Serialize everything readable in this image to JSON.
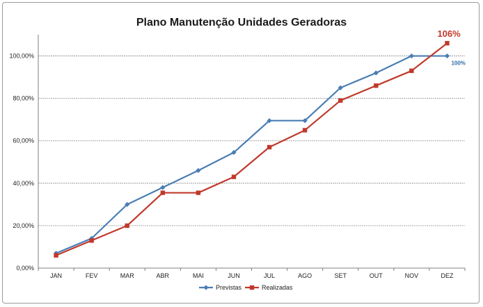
{
  "chart_data": {
    "type": "line",
    "title": "Plano Manutenção Unidades Geradoras",
    "xlabel": "",
    "ylabel": "",
    "categories": [
      "JAN",
      "FEV",
      "MAR",
      "ABR",
      "MAI",
      "JUN",
      "JUL",
      "AGO",
      "SET",
      "OUT",
      "NOV",
      "DEZ"
    ],
    "ylim": [
      0,
      110
    ],
    "yticks": [
      0,
      20,
      40,
      60,
      80,
      100
    ],
    "ytick_labels": [
      "0,00%",
      "20,00%",
      "40,00%",
      "60,00%",
      "80,00%",
      "100,00%"
    ],
    "grid": true,
    "legend_position": "bottom",
    "series": [
      {
        "name": "Previstas",
        "color": "#4a7eb4",
        "marker": "diamond",
        "values": [
          7,
          14,
          30,
          38,
          46,
          54.5,
          69.5,
          69.5,
          85,
          92,
          100,
          100
        ]
      },
      {
        "name": "Realizadas",
        "color": "#c0392b",
        "marker": "square",
        "values": [
          6,
          13,
          20,
          35.5,
          35.5,
          43,
          57,
          65,
          79,
          86,
          93,
          106
        ]
      }
    ],
    "annotations": [
      {
        "series": "Realizadas",
        "index": 11,
        "text": "106%",
        "color": "#c0392b"
      },
      {
        "series": "Previstas",
        "index": 11,
        "text": "100%",
        "color": "#2e6da4"
      }
    ]
  }
}
